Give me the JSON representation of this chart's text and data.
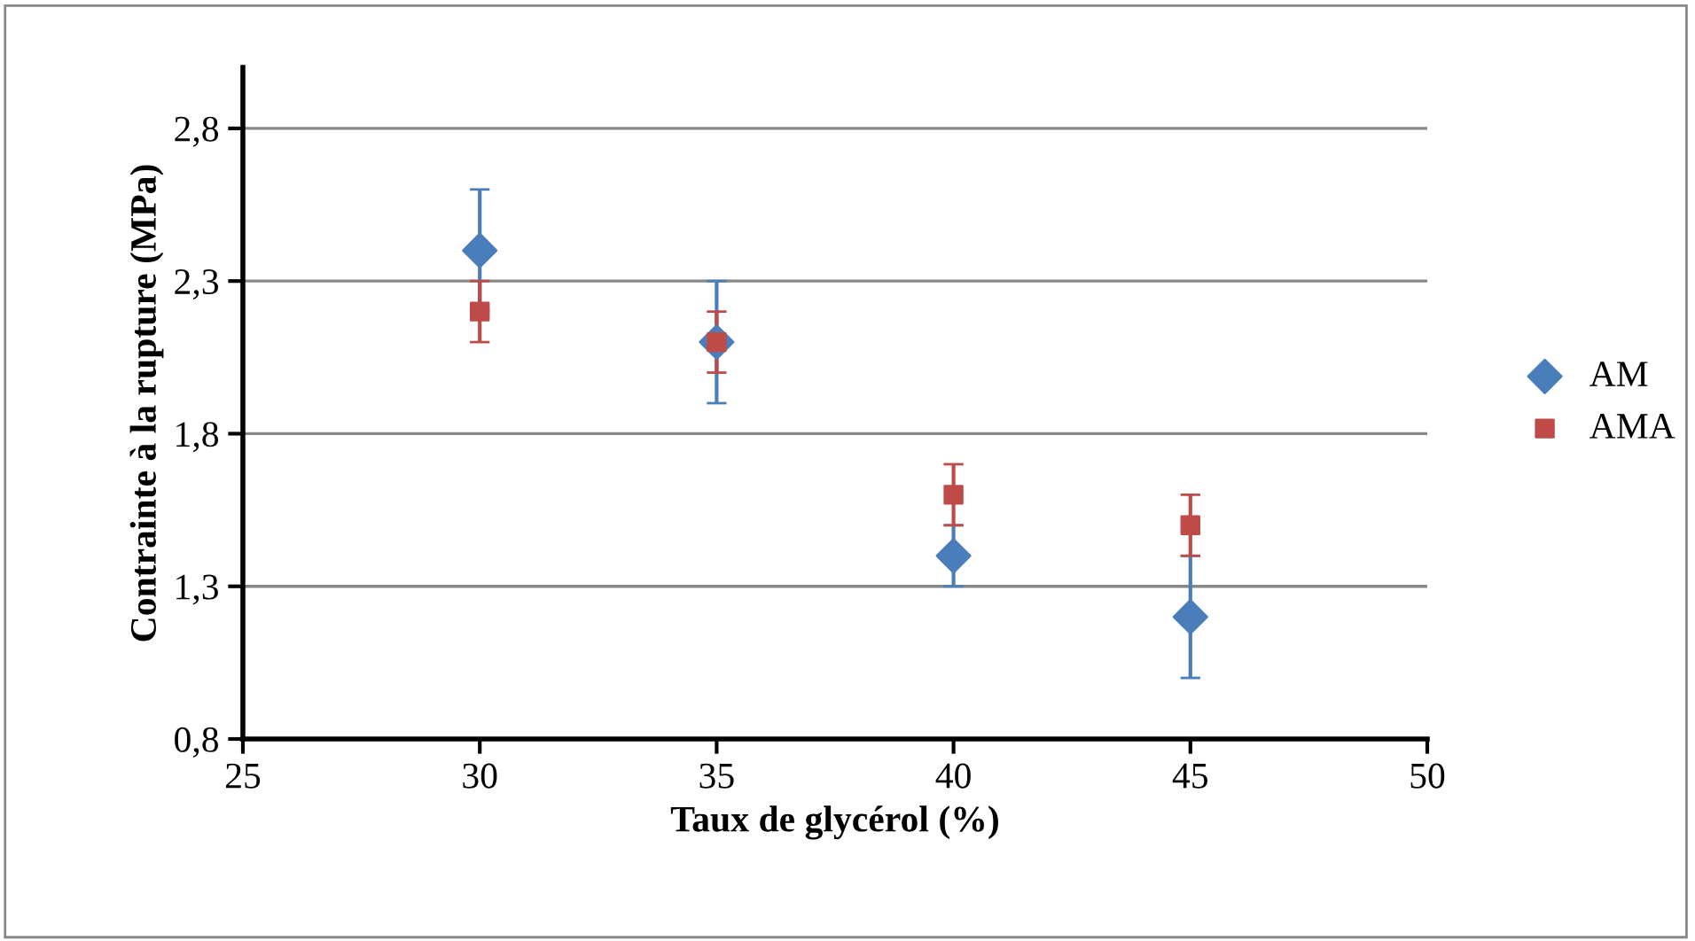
{
  "chart_data": {
    "type": "scatter",
    "xlabel": "Taux de glycérol (%)",
    "ylabel": "Contrainte à la rupture (MPa)",
    "x": [
      30,
      35,
      40,
      45
    ],
    "series": [
      {
        "name": "AM",
        "color": "#4a7ebb",
        "marker": "diamond",
        "values": [
          2.4,
          2.1,
          1.4,
          1.2
        ],
        "errors": [
          0.2,
          0.2,
          0.1,
          0.2
        ]
      },
      {
        "name": "AMA",
        "color": "#be4b48",
        "marker": "square",
        "values": [
          2.2,
          2.1,
          1.6,
          1.5
        ],
        "errors": [
          0.1,
          0.1,
          0.1,
          0.1
        ]
      }
    ],
    "xlim": [
      25,
      50
    ],
    "xticks": [
      25,
      30,
      35,
      40,
      45,
      50
    ],
    "ylim": [
      0.8,
      3.0
    ],
    "yticks": [
      {
        "value": 0.8,
        "label": "0,8"
      },
      {
        "value": 1.3,
        "label": "1,3"
      },
      {
        "value": 1.8,
        "label": "1,8"
      },
      {
        "value": 2.3,
        "label": "2,3"
      },
      {
        "value": 2.8,
        "label": "2,8"
      }
    ],
    "grid": "y",
    "legend": "right"
  }
}
